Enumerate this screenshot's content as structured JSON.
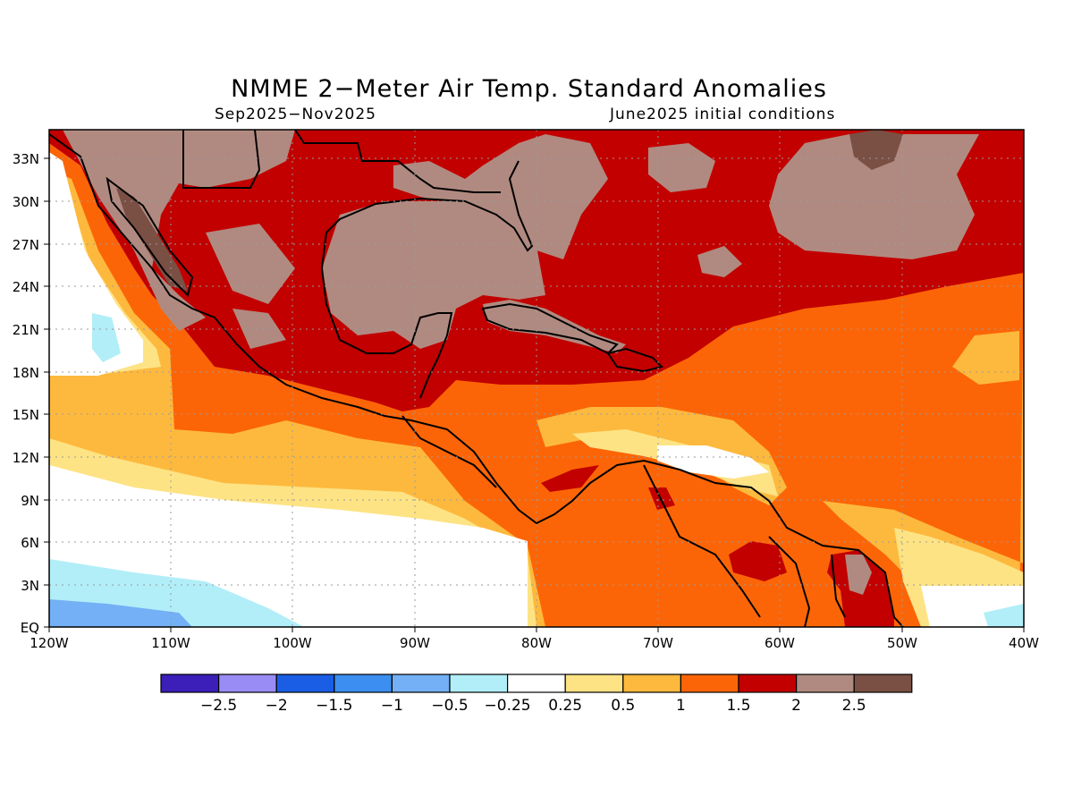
{
  "title": "NMME 2−Meter Air Temp. Standard Anomalies",
  "subtitle_left": "Sep2025−Nov2025",
  "subtitle_right": "June2025 initial conditions",
  "map": {
    "region": "Gulf of Mexico, Caribbean, Central America and northern South America",
    "lon_labels": [
      "120W",
      "110W",
      "100W",
      "90W",
      "80W",
      "70W",
      "60W",
      "50W",
      "40W"
    ],
    "lat_labels": [
      "EQ",
      "3N",
      "6N",
      "9N",
      "12N",
      "15N",
      "18N",
      "21N",
      "24N",
      "27N",
      "30N",
      "33N"
    ],
    "lon_range": [
      -120,
      -40
    ],
    "lat_range": [
      0,
      35
    ],
    "grid": "dotted"
  },
  "colorbar": {
    "colors": [
      "#3b1fb8",
      "#9a8cf5",
      "#1a5ee6",
      "#3c8ff0",
      "#73b0f5",
      "#b1eef8",
      "#ffffff",
      "#fde384",
      "#fdb93e",
      "#fc6507",
      "#c20000",
      "#b08a80",
      "#7a4f44"
    ],
    "labels": [
      "−2.5",
      "−2",
      "−1.5",
      "−1",
      "−0.5",
      "−0.25",
      "0.25",
      "0.5",
      "1",
      "1.5",
      "2",
      "2.5"
    ]
  }
}
